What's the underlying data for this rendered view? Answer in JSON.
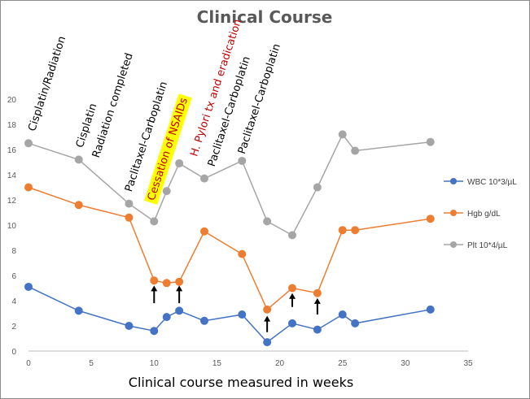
{
  "chart_data": {
    "type": "line",
    "title": "Clinical Course",
    "xlabel": "Clinical course measured in weeks",
    "ylabel": "",
    "xlim": [
      0,
      35
    ],
    "ylim": [
      0,
      20
    ],
    "xticks": [
      0,
      5,
      10,
      15,
      20,
      25,
      30,
      35
    ],
    "yticks": [
      0,
      2,
      4,
      6,
      8,
      10,
      12,
      14,
      16,
      18,
      20
    ],
    "grid": false,
    "legend_position": "right",
    "series": [
      {
        "name": "WBC 10*3/µL",
        "color": "#4472c4",
        "x": [
          0,
          4,
          8,
          10,
          11,
          12,
          14,
          17,
          19,
          21,
          23,
          25,
          26,
          32
        ],
        "values": [
          5.1,
          3.2,
          2.0,
          1.6,
          2.7,
          3.2,
          2.4,
          2.9,
          0.7,
          2.2,
          1.7,
          2.9,
          2.2,
          3.3
        ]
      },
      {
        "name": "Hgb g/dL",
        "color": "#ed7d31",
        "x": [
          0,
          4,
          8,
          10,
          11,
          12,
          14,
          17,
          19,
          21,
          23,
          25,
          26,
          32
        ],
        "values": [
          13.0,
          11.6,
          10.6,
          5.6,
          5.4,
          5.5,
          9.5,
          7.7,
          3.3,
          5.0,
          4.6,
          9.6,
          9.6,
          10.5
        ]
      },
      {
        "name": "Plt 10*4/µL",
        "color": "#a5a5a5",
        "x": [
          0,
          4,
          8,
          10,
          11,
          12,
          14,
          17,
          19,
          21,
          23,
          25,
          26,
          32
        ],
        "values": [
          16.5,
          15.2,
          11.7,
          10.3,
          12.7,
          14.9,
          13.7,
          15.1,
          10.3,
          9.2,
          13.0,
          17.2,
          15.9,
          16.6
        ]
      }
    ],
    "annotations": [
      {
        "text": "Cisplatin/Radiation",
        "x": 0.5,
        "y": 17.4,
        "color": "#000000",
        "highlight": false
      },
      {
        "text": "Cisplatin",
        "x": 4.3,
        "y": 16.1,
        "color": "#000000",
        "highlight": false
      },
      {
        "text": "Radiation completed",
        "x": 5.6,
        "y": 15.3,
        "color": "#000000",
        "highlight": false
      },
      {
        "text": "Paclitaxel-Carboplatin",
        "x": 8.2,
        "y": 12.6,
        "color": "#000000",
        "highlight": false
      },
      {
        "text": "Cessation of NSAIDs",
        "x": 10.0,
        "y": 11.9,
        "color": "#c00000",
        "highlight": true
      },
      {
        "text": "H. Pylori tx and eradication",
        "x": 13.4,
        "y": 15.4,
        "color": "#c00000",
        "highlight": false
      },
      {
        "text": "Paclitaxel-Carboplatin",
        "x": 14.8,
        "y": 14.6,
        "color": "#000000",
        "highlight": false
      },
      {
        "text": "Paclitaxel-Carboplatin",
        "x": 17.2,
        "y": 15.6,
        "color": "#000000",
        "highlight": false
      }
    ],
    "arrows": [
      {
        "x": 10,
        "y_from": 3.8,
        "y_to": 5.2
      },
      {
        "x": 12,
        "y_from": 3.8,
        "y_to": 5.2
      },
      {
        "x": 19,
        "y_from": 1.5,
        "y_to": 2.8
      },
      {
        "x": 21,
        "y_from": 3.5,
        "y_to": 4.6
      },
      {
        "x": 23,
        "y_from": 2.9,
        "y_to": 4.2
      }
    ]
  }
}
